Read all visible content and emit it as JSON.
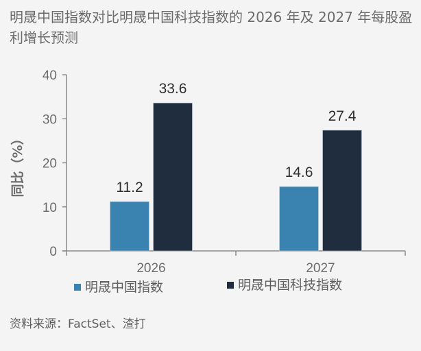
{
  "title": "明晟中国指数对比明晟中国科技指数的 2026 年及 2027 年每股盈利增长预测",
  "source": "资料来源：FactSet、渣打",
  "chart_data": {
    "type": "bar",
    "title": "明晟中国指数对比明晟中国科技指数的 2026 年及 2027 年每股盈利增长预测",
    "categories": [
      "2026",
      "2027"
    ],
    "series": [
      {
        "name": "明晟中国指数",
        "values": [
          11.2,
          14.6
        ],
        "color": "#3a82b0"
      },
      {
        "name": "明晟中国科技指数",
        "values": [
          33.6,
          27.4
        ],
        "color": "#1f2d3f"
      }
    ],
    "data_labels": [
      [
        "11.2",
        "14.6"
      ],
      [
        "33.6",
        "27.4"
      ]
    ],
    "xlabel": "",
    "ylabel": "同比（%）",
    "ylim": [
      0,
      40
    ],
    "yticks": [
      "0",
      "10",
      "20",
      "30",
      "40"
    ],
    "grid": false,
    "legend": "bottom"
  }
}
